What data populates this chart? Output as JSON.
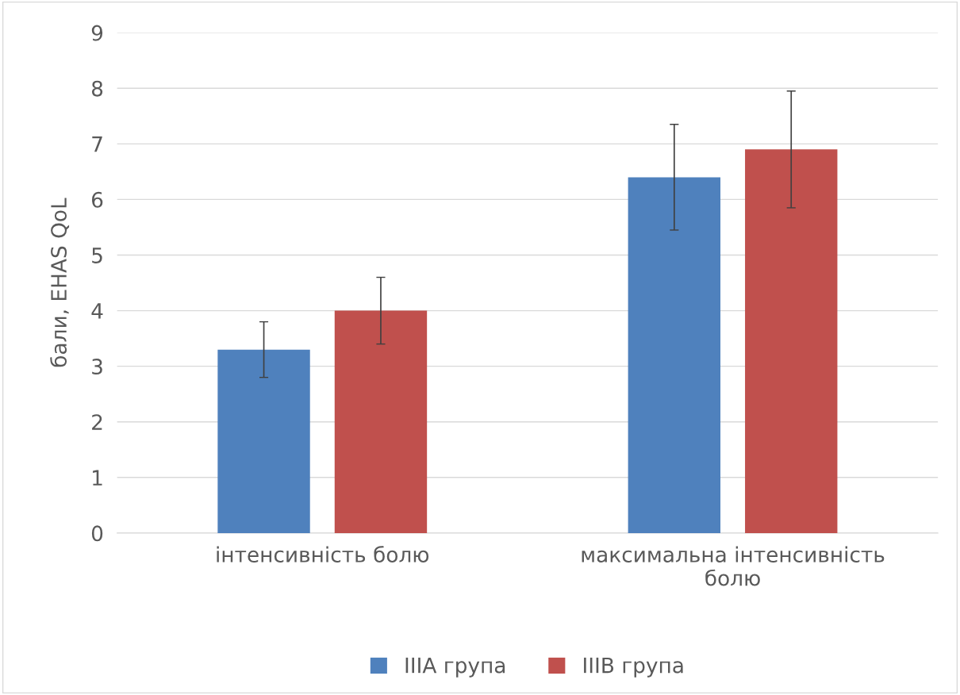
{
  "chart_data": {
    "type": "bar",
    "ylabel": "бали, EHAS QoL",
    "categories": [
      "інтенсивність болю",
      "максимальна інтенсивність болю"
    ],
    "series": [
      {
        "name": "IIIA група",
        "color": "#4f81bd",
        "values": [
          3.3,
          6.4
        ],
        "errors": [
          0.5,
          0.95
        ]
      },
      {
        "name": "IIIB група",
        "color": "#c0504d",
        "values": [
          4.0,
          6.9
        ],
        "errors": [
          0.6,
          1.05
        ]
      }
    ],
    "ylim": [
      0,
      9
    ],
    "yticks": [
      0,
      1,
      2,
      3,
      4,
      5,
      6,
      7,
      8,
      9
    ],
    "grid": "y",
    "legend": "bottom"
  }
}
